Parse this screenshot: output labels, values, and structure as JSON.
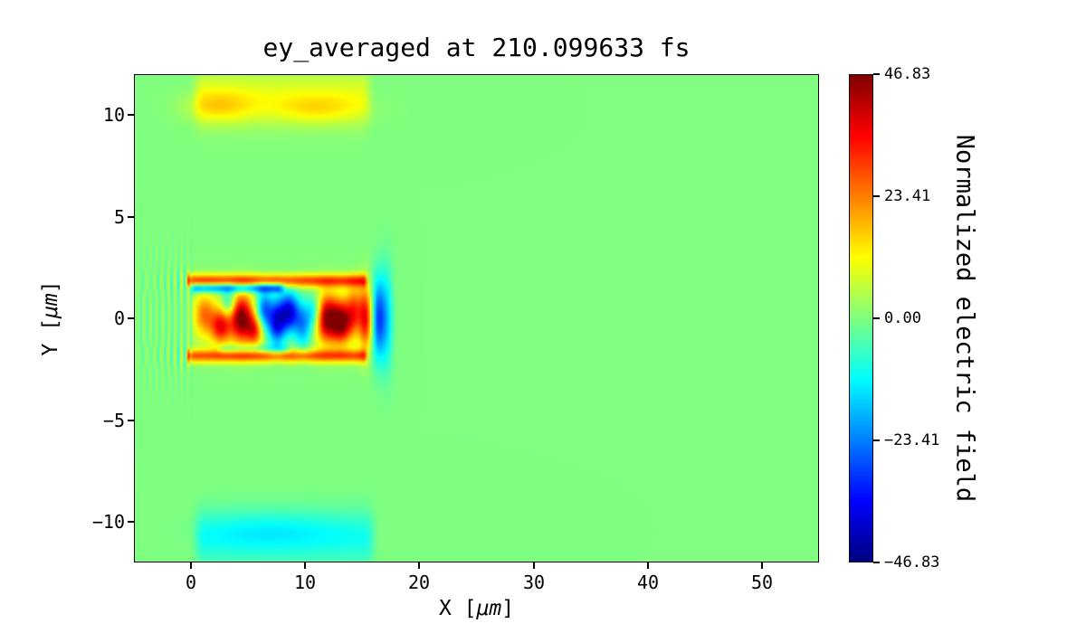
{
  "figure": {
    "background": "#ffffff"
  },
  "chart_data": {
    "type": "heatmap",
    "title": "ey_averaged at 210.099633 fs",
    "xlabel": "X [μm]",
    "ylabel": "Y [μm]",
    "xlabel_parts": {
      "pre": "X [",
      "unit": "μm",
      "post": "]"
    },
    "ylabel_parts": {
      "pre": "Y [",
      "unit": "μm",
      "post": "]"
    },
    "xlim": [
      -5,
      55
    ],
    "ylim": [
      -12,
      12
    ],
    "xticks": [
      0,
      10,
      20,
      30,
      40,
      50
    ],
    "xtick_labels": [
      "0",
      "10",
      "20",
      "30",
      "40",
      "50"
    ],
    "yticks": [
      10,
      5,
      0,
      -5,
      -10
    ],
    "ytick_labels": [
      "10",
      "5",
      "0",
      "−5",
      "−10"
    ],
    "grid": false,
    "colormap": "jet",
    "background_value": 0,
    "colorbar": {
      "label": "Normalized electric field",
      "vmin": -46.83,
      "vmax": 46.83,
      "ticks": [
        46.83,
        23.41,
        0,
        -23.41,
        -46.83
      ],
      "tick_labels": [
        "46.83",
        "23.41",
        "0.00",
        "−23.41",
        "−46.83"
      ],
      "position": "right"
    },
    "features": [
      {
        "type": "stripe",
        "a": 9,
        "y": 10.9,
        "sy": 0.95,
        "x0": -0.2,
        "x1": 16.2,
        "edge": 1.3
      },
      {
        "type": "blob",
        "a": 9,
        "x": 2.5,
        "y": 10.4,
        "sx": 2.2,
        "sy": 0.55
      },
      {
        "type": "blob",
        "a": 8,
        "x": 11.0,
        "y": 10.3,
        "sx": 2.8,
        "sy": 0.5
      },
      {
        "type": "stripe",
        "a": -10,
        "y": -10.8,
        "sy": 0.95,
        "x0": -0.2,
        "x1": 16.6,
        "edge": 1.4
      },
      {
        "type": "blob",
        "a": -4,
        "x": 7.0,
        "y": -10.4,
        "sx": 4.0,
        "sy": 0.6
      },
      {
        "type": "stripe",
        "a": 7,
        "y": 0,
        "sy": 1.15,
        "x0": -0.3,
        "x1": 16.6,
        "edge": 0.9
      },
      {
        "type": "stripe",
        "a": 28,
        "y": 1.85,
        "sy": 0.22,
        "x0": -0.6,
        "x1": 15.6,
        "edge": 0.5
      },
      {
        "type": "stripe",
        "a": -30,
        "y": 1.5,
        "sy": 0.16,
        "x0": -0.4,
        "x1": 8.5,
        "edge": 0.9
      },
      {
        "type": "stripe",
        "a": 26,
        "y": -1.85,
        "sy": 0.22,
        "x0": -0.6,
        "x1": 15.6,
        "edge": 0.5
      },
      {
        "type": "stripe",
        "a": -12,
        "y": -1.5,
        "sy": 0.15,
        "x0": 2.0,
        "x1": 9.0,
        "edge": 0.9
      },
      {
        "type": "blob",
        "a": 18,
        "x": 1.2,
        "y": 0.2,
        "sx": 0.6,
        "sy": 0.7
      },
      {
        "type": "blob",
        "a": 30,
        "x": 2.6,
        "y": -0.4,
        "sx": 0.6,
        "sy": 0.6
      },
      {
        "type": "blob",
        "a": -18,
        "x": 3.3,
        "y": 0.7,
        "sx": 0.45,
        "sy": 0.5
      },
      {
        "type": "blob",
        "a": 42,
        "x": 4.4,
        "y": 0.0,
        "sx": 0.7,
        "sy": 0.8
      },
      {
        "type": "blob",
        "a": 25,
        "x": 5.6,
        "y": -0.6,
        "sx": 0.5,
        "sy": 0.5
      },
      {
        "type": "blob",
        "a": -30,
        "x": 6.4,
        "y": 0.4,
        "sx": 0.5,
        "sy": 0.7
      },
      {
        "type": "blob",
        "a": -40,
        "x": 7.5,
        "y": -0.2,
        "sx": 0.55,
        "sy": 0.8
      },
      {
        "type": "blob",
        "a": -42,
        "x": 8.6,
        "y": 0.3,
        "sx": 0.6,
        "sy": 0.7
      },
      {
        "type": "blob",
        "a": -26,
        "x": 9.8,
        "y": -0.3,
        "sx": 0.55,
        "sy": 0.8
      },
      {
        "type": "blob",
        "a": -20,
        "x": 10.8,
        "y": 0.3,
        "sx": 0.5,
        "sy": 0.6
      },
      {
        "type": "blob",
        "a": 40,
        "x": 11.9,
        "y": 0.0,
        "sx": 0.7,
        "sy": 0.8
      },
      {
        "type": "blob",
        "a": 38,
        "x": 13.2,
        "y": -0.2,
        "sx": 0.6,
        "sy": 0.7
      },
      {
        "type": "blob",
        "a": 22,
        "x": 14.3,
        "y": 0.4,
        "sx": 0.5,
        "sy": 0.8
      },
      {
        "type": "blob",
        "a": 28,
        "x": 15.3,
        "y": 0.0,
        "sx": 0.4,
        "sy": 1.1
      },
      {
        "type": "blob",
        "a": -30,
        "x": 16.4,
        "y": 0.0,
        "sx": 0.45,
        "sy": 1.4
      },
      {
        "type": "blob",
        "a": -12,
        "x": 17.2,
        "y": 0.0,
        "sx": 0.35,
        "sy": 1.8
      },
      {
        "type": "ripples",
        "a": 6,
        "x0": -4.8,
        "x1": 0.3,
        "wavelength": 0.55,
        "y": 0,
        "sy": 2.3,
        "edge": 0.3
      },
      {
        "type": "ripples",
        "a": 8,
        "x0": -4.6,
        "x1": 0.0,
        "wavelength": 0.6,
        "y": 1.8,
        "sy": 0.4,
        "edge": 0.3
      },
      {
        "type": "ripples",
        "a": 8,
        "x0": -4.6,
        "x1": 0.0,
        "wavelength": 0.6,
        "y": -1.8,
        "sy": 0.4,
        "edge": 0.3
      }
    ]
  }
}
